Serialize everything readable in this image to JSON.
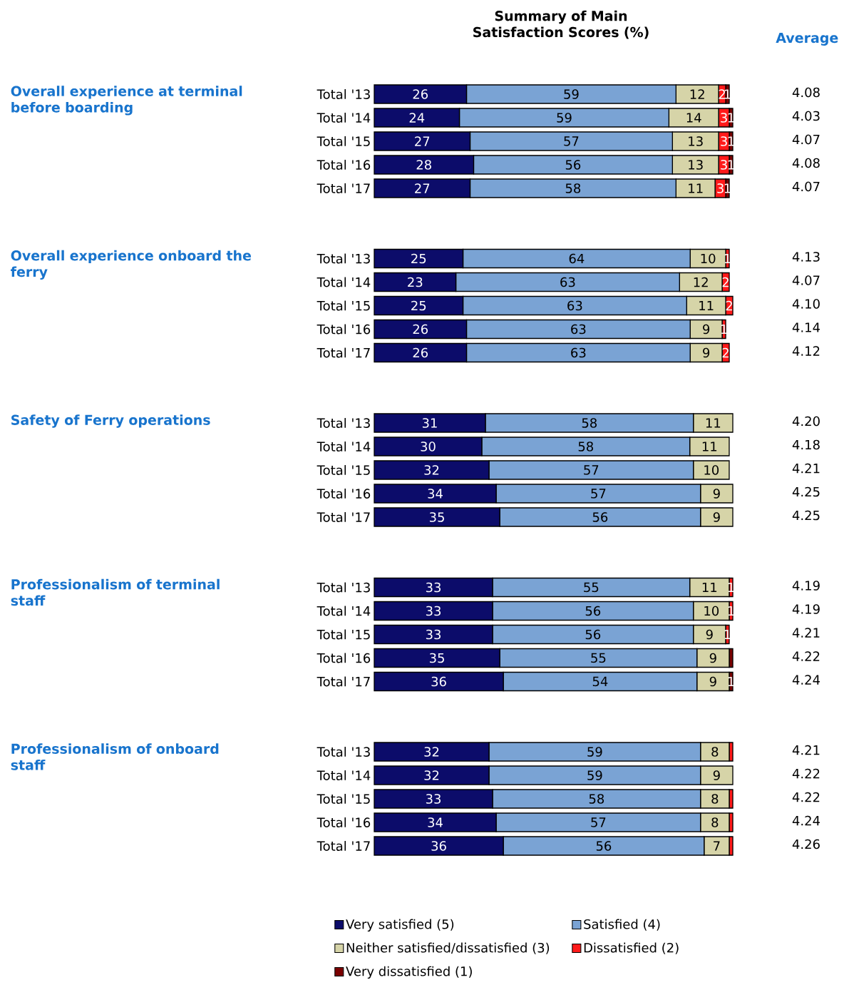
{
  "chart_data": [
    {
      "type": "bar",
      "orientation": "horizontal",
      "stacked": true,
      "tick_labels": "y",
      "title": "Summary of Main Satisfaction Scores (%)",
      "ylabel": "Overall experience at terminal before boarding",
      "categories": [
        "Total '13",
        "Total '14",
        "Total '15",
        "Total '16",
        "Total '17"
      ],
      "series": [
        {
          "color": "#0c0c6a",
          "values": [
            26,
            24,
            27,
            28,
            27
          ],
          "value_labels": [
            "26",
            "24",
            "27",
            "28",
            "27"
          ]
        },
        {
          "color": "#7aa3d4",
          "values": [
            59,
            59,
            57,
            56,
            58
          ],
          "value_labels": [
            "59",
            "59",
            "57",
            "56",
            "58"
          ]
        },
        {
          "color": "#d6d4a8",
          "values": [
            12,
            14,
            13,
            13,
            11
          ],
          "value_labels": [
            "12",
            "14",
            "13",
            "13",
            "11"
          ]
        },
        {
          "color": "#ff1a1a",
          "values": [
            2,
            3,
            3,
            3,
            3
          ],
          "value_labels": [
            "2",
            "3",
            "3",
            "3",
            "3"
          ]
        },
        {
          "color": "#7a0000",
          "values": [
            1,
            1,
            1,
            1,
            1
          ],
          "value_labels": [
            "1",
            "1",
            "1",
            "1",
            "1"
          ]
        }
      ],
      "annotations": [
        "Average",
        "4.08",
        "4.03",
        "4.07",
        "4.08",
        "4.07"
      ]
    },
    {
      "type": "bar",
      "orientation": "horizontal",
      "stacked": true,
      "tick_labels": "y",
      "ylabel": "Overall experience onboard the ferry",
      "categories": [
        "Total '13",
        "Total '14",
        "Total '15",
        "Total '16",
        "Total '17"
      ],
      "series": [
        {
          "color": "#0c0c6a",
          "values": [
            25,
            23,
            25,
            26,
            26
          ],
          "value_labels": [
            "25",
            "23",
            "25",
            "26",
            "26"
          ]
        },
        {
          "color": "#7aa3d4",
          "values": [
            64,
            63,
            63,
            63,
            63
          ],
          "value_labels": [
            "64",
            "63",
            "63",
            "63",
            "63"
          ]
        },
        {
          "color": "#d6d4a8",
          "values": [
            10,
            12,
            11,
            9,
            9
          ],
          "value_labels": [
            "10",
            "12",
            "11",
            "9",
            "9"
          ]
        },
        {
          "color": "#ff1a1a",
          "values": [
            1,
            2,
            2,
            1,
            2
          ],
          "value_labels": [
            "1",
            "2",
            "2",
            "1",
            "2"
          ]
        },
        {
          "color": "#7a0000",
          "values": [
            0,
            0,
            0,
            0,
            0
          ],
          "value_labels": [
            null,
            null,
            null,
            null,
            null
          ]
        }
      ],
      "annotations": [
        "4.13",
        "4.07",
        "4.10",
        "4.14",
        "4.12"
      ]
    },
    {
      "type": "bar",
      "orientation": "horizontal",
      "stacked": true,
      "tick_labels": "y",
      "ylabel": "Safety of Ferry operations",
      "categories": [
        "Total '13",
        "Total '14",
        "Total '15",
        "Total '16",
        "Total '17"
      ],
      "series": [
        {
          "color": "#0c0c6a",
          "values": [
            31,
            30,
            32,
            34,
            35
          ],
          "value_labels": [
            "31",
            "30",
            "32",
            "34",
            "35"
          ]
        },
        {
          "color": "#7aa3d4",
          "values": [
            58,
            58,
            57,
            57,
            56
          ],
          "value_labels": [
            "58",
            "58",
            "57",
            "57",
            "56"
          ]
        },
        {
          "color": "#d6d4a8",
          "values": [
            11,
            11,
            10,
            9,
            9
          ],
          "value_labels": [
            "11",
            "11",
            "10",
            "9",
            "9"
          ]
        },
        {
          "color": "#ff1a1a",
          "values": [
            0,
            0,
            0,
            0,
            0
          ],
          "value_labels": [
            null,
            null,
            null,
            null,
            null
          ]
        },
        {
          "color": "#7a0000",
          "values": [
            0,
            0,
            0,
            0,
            0
          ],
          "value_labels": [
            null,
            null,
            null,
            null,
            null
          ]
        }
      ],
      "annotations": [
        "4.20",
        "4.18",
        "4.21",
        "4.25",
        "4.25"
      ]
    },
    {
      "type": "bar",
      "orientation": "horizontal",
      "stacked": true,
      "tick_labels": "y",
      "ylabel": "Professionalism of terminal staff",
      "categories": [
        "Total '13",
        "Total '14",
        "Total '15",
        "Total '16",
        "Total '17"
      ],
      "series": [
        {
          "color": "#0c0c6a",
          "values": [
            33,
            33,
            33,
            35,
            36
          ],
          "value_labels": [
            "33",
            "33",
            "33",
            "35",
            "36"
          ]
        },
        {
          "color": "#7aa3d4",
          "values": [
            55,
            56,
            56,
            55,
            54
          ],
          "value_labels": [
            "55",
            "56",
            "56",
            "55",
            "54"
          ]
        },
        {
          "color": "#d6d4a8",
          "values": [
            11,
            10,
            9,
            9,
            9
          ],
          "value_labels": [
            "11",
            "10",
            "9",
            "9",
            "9"
          ]
        },
        {
          "color": "#ff1a1a",
          "values": [
            1,
            1,
            1,
            0,
            0
          ],
          "value_labels": [
            "1",
            "1",
            "1",
            null,
            null
          ]
        },
        {
          "color": "#7a0000",
          "values": [
            0,
            0,
            0,
            1,
            1
          ],
          "value_labels": [
            null,
            null,
            null,
            null,
            "1"
          ]
        }
      ],
      "annotations": [
        "4.19",
        "4.19",
        "4.21",
        "4.22",
        "4.24"
      ]
    },
    {
      "type": "bar",
      "orientation": "horizontal",
      "stacked": true,
      "tick_labels": "y",
      "ylabel": "Professionalism of onboard staff",
      "legend": "bottom",
      "categories": [
        "Total '13",
        "Total '14",
        "Total '15",
        "Total '16",
        "Total '17"
      ],
      "series": [
        {
          "name": "Very satisfied (5)",
          "color": "#0c0c6a",
          "values": [
            32,
            32,
            33,
            34,
            36
          ],
          "value_labels": [
            "32",
            "32",
            "33",
            "34",
            "36"
          ]
        },
        {
          "name": "Satisfied (4)",
          "color": "#7aa3d4",
          "values": [
            59,
            59,
            58,
            57,
            56
          ],
          "value_labels": [
            "59",
            "59",
            "58",
            "57",
            "56"
          ]
        },
        {
          "name": "Neither satisfied/dissatisfied (3)",
          "color": "#d6d4a8",
          "values": [
            8,
            9,
            8,
            8,
            7
          ],
          "value_labels": [
            "8",
            "9",
            "8",
            "8",
            "7"
          ]
        },
        {
          "name": "Dissatisfied (2)",
          "color": "#ff1a1a",
          "values": [
            1,
            0,
            1,
            1,
            1
          ],
          "value_labels": [
            null,
            null,
            null,
            null,
            null
          ]
        },
        {
          "name": "Very dissatisfied (1)",
          "color": "#7a0000",
          "values": [
            0,
            0,
            0,
            0,
            0
          ],
          "value_labels": [
            null,
            null,
            null,
            null,
            null
          ]
        }
      ],
      "annotations": [
        "4.21",
        "4.22",
        "4.22",
        "4.24",
        "4.26"
      ]
    }
  ]
}
